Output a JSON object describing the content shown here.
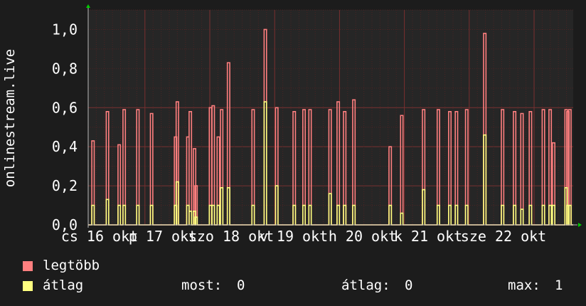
{
  "colors": {
    "background": "#1c1c1c",
    "plot_area": "#262626",
    "grid": "#5a2a2a",
    "axis": "#bbbbbb",
    "arrow": "#00cc00",
    "series_max": "#ff7f7f",
    "series_avg": "#ffff7f"
  },
  "legend": {
    "max_label": "legtöbb",
    "avg_label": "átlag",
    "now_label": "most:",
    "now_value": "0",
    "avg_stat_label": "átlag:",
    "avg_stat_value": "0",
    "max_stat_label": "max:",
    "max_stat_value": "1"
  },
  "chart_data": {
    "type": "line",
    "ylabel": "onlinestream.live",
    "ylim": [
      0,
      1.1
    ],
    "y_ticks": [
      {
        "value": 0.0,
        "label": "0,0"
      },
      {
        "value": 0.2,
        "label": "0,2"
      },
      {
        "value": 0.4,
        "label": "0,4"
      },
      {
        "value": 0.6,
        "label": "0,6"
      },
      {
        "value": 0.8,
        "label": "0,8"
      },
      {
        "value": 1.0,
        "label": "1,0"
      }
    ],
    "x_tick_labels": [
      "cs 16 okt",
      "p 17 okt",
      "szo 18 okt",
      "v 19 okt",
      "h 20 okt",
      "k 21 okt",
      "sze 22 okt"
    ],
    "grid": true,
    "series": [
      {
        "name": "legtöbb",
        "color": "#ff7f7f",
        "spikes": [
          [
            3.2,
            0.43
          ],
          [
            12.8,
            0.58
          ],
          [
            20.6,
            0.41
          ],
          [
            23.9,
            0.59
          ],
          [
            33.0,
            0.59
          ],
          [
            42.1,
            0.57
          ],
          [
            58.0,
            0.45
          ],
          [
            59.2,
            0.63
          ],
          [
            66.2,
            0.45
          ],
          [
            67.8,
            0.58
          ],
          [
            70.6,
            0.39
          ],
          [
            71.6,
            0.2
          ],
          [
            81.2,
            0.6
          ],
          [
            83.0,
            0.61
          ],
          [
            86.4,
            0.45
          ],
          [
            88.6,
            0.59
          ],
          [
            93.2,
            0.83
          ],
          [
            109.5,
            0.59
          ],
          [
            117.6,
            1.0
          ],
          [
            125.2,
            0.6
          ],
          [
            136.8,
            0.58
          ],
          [
            143.3,
            0.59
          ],
          [
            147.3,
            0.59
          ],
          [
            160.6,
            0.59
          ],
          [
            166.0,
            0.63
          ],
          [
            170.3,
            0.58
          ],
          [
            176.4,
            0.64
          ],
          [
            200.5,
            0.4
          ],
          [
            208.2,
            0.56
          ],
          [
            222.7,
            0.59
          ],
          [
            232.5,
            0.59
          ],
          [
            240.1,
            0.58
          ],
          [
            244.5,
            0.58
          ],
          [
            251.3,
            0.59
          ],
          [
            263.3,
            0.98
          ],
          [
            275.1,
            0.59
          ],
          [
            283.1,
            0.58
          ],
          [
            288.0,
            0.57
          ],
          [
            293.6,
            0.58
          ],
          [
            302.2,
            0.59
          ],
          [
            306.7,
            0.59
          ],
          [
            309.0,
            0.42
          ],
          [
            317.3,
            0.59
          ],
          [
            318.5,
            0.58
          ],
          [
            319.8,
            0.59
          ]
        ]
      },
      {
        "name": "átlag",
        "color": "#ffff7f",
        "spikes": [
          [
            3.2,
            0.1
          ],
          [
            12.8,
            0.13
          ],
          [
            20.6,
            0.1
          ],
          [
            23.9,
            0.1
          ],
          [
            33.0,
            0.1
          ],
          [
            42.1,
            0.1
          ],
          [
            58.0,
            0.1
          ],
          [
            59.2,
            0.22
          ],
          [
            66.2,
            0.1
          ],
          [
            67.8,
            0.07
          ],
          [
            70.6,
            0.07
          ],
          [
            71.6,
            0.04
          ],
          [
            81.2,
            0.1
          ],
          [
            83.0,
            0.1
          ],
          [
            86.4,
            0.1
          ],
          [
            88.6,
            0.19
          ],
          [
            93.2,
            0.19
          ],
          [
            109.5,
            0.1
          ],
          [
            117.6,
            0.63
          ],
          [
            125.2,
            0.2
          ],
          [
            136.8,
            0.1
          ],
          [
            143.3,
            0.1
          ],
          [
            147.3,
            0.1
          ],
          [
            160.6,
            0.16
          ],
          [
            166.0,
            0.1
          ],
          [
            170.3,
            0.1
          ],
          [
            176.4,
            0.1
          ],
          [
            200.5,
            0.1
          ],
          [
            208.2,
            0.06
          ],
          [
            222.7,
            0.18
          ],
          [
            232.5,
            0.1
          ],
          [
            240.1,
            0.1
          ],
          [
            244.5,
            0.1
          ],
          [
            251.3,
            0.1
          ],
          [
            263.3,
            0.46
          ],
          [
            275.1,
            0.1
          ],
          [
            283.1,
            0.1
          ],
          [
            288.0,
            0.08
          ],
          [
            293.6,
            0.1
          ],
          [
            302.2,
            0.1
          ],
          [
            306.7,
            0.1
          ],
          [
            309.0,
            0.1
          ],
          [
            317.3,
            0.19
          ],
          [
            318.5,
            0.1
          ],
          [
            319.8,
            0.1
          ]
        ]
      }
    ]
  }
}
